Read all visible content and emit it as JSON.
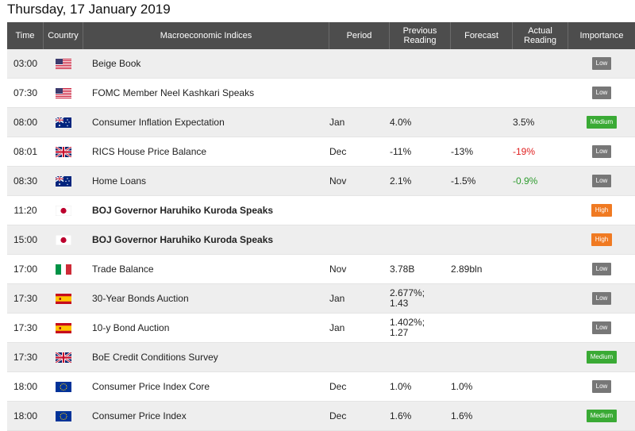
{
  "page": {
    "title": "Thursday, 17 January 2019"
  },
  "headers": {
    "time": "Time",
    "country": "Country",
    "index": "Macroeconomic Indices",
    "period": "Period",
    "previous": "Previous Reading",
    "forecast": "Forecast",
    "actual": "Actual Reading",
    "importance": "Importance"
  },
  "colors": {
    "low": "#777777",
    "medium": "#3aaa35",
    "high": "#f07a22",
    "header": "#4d4d4d"
  },
  "rows": [
    {
      "time": "03:00",
      "flag": "us-flag-icon",
      "name": "Beige Book",
      "bold": false,
      "period": "",
      "previous": "",
      "forecast": "",
      "actual": "",
      "actual_tone": "",
      "importance": "Low"
    },
    {
      "time": "07:30",
      "flag": "us-flag-icon",
      "name": "FOMC Member Neel Kashkari Speaks",
      "bold": false,
      "period": "",
      "previous": "",
      "forecast": "",
      "actual": "",
      "actual_tone": "",
      "importance": "Low"
    },
    {
      "time": "08:00",
      "flag": "au-flag-icon",
      "name": "Consumer Inflation Expectation",
      "bold": false,
      "period": "Jan",
      "previous": "4.0%",
      "forecast": "",
      "actual": "3.5%",
      "actual_tone": "",
      "importance": "Medium"
    },
    {
      "time": "08:01",
      "flag": "uk-flag-icon",
      "name": "RICS House Price Balance",
      "bold": false,
      "period": "Dec",
      "previous": "-11%",
      "forecast": "-13%",
      "actual": "-19%",
      "actual_tone": "neg",
      "importance": "Low"
    },
    {
      "time": "08:30",
      "flag": "au-flag-icon",
      "name": "Home Loans",
      "bold": false,
      "period": "Nov",
      "previous": "2.1%",
      "forecast": "-1.5%",
      "actual": "-0.9%",
      "actual_tone": "pos",
      "importance": "Low"
    },
    {
      "time": "11:20",
      "flag": "jp-flag-icon",
      "name": "BOJ Governor Haruhiko Kuroda Speaks",
      "bold": true,
      "period": "",
      "previous": "",
      "forecast": "",
      "actual": "",
      "actual_tone": "",
      "importance": "High"
    },
    {
      "time": "15:00",
      "flag": "jp-flag-icon",
      "name": "BOJ Governor Haruhiko Kuroda Speaks",
      "bold": true,
      "period": "",
      "previous": "",
      "forecast": "",
      "actual": "",
      "actual_tone": "",
      "importance": "High"
    },
    {
      "time": "17:00",
      "flag": "it-flag-icon",
      "name": "Trade Balance",
      "bold": false,
      "period": "Nov",
      "previous": "3.78B",
      "forecast": "2.89bln",
      "actual": "",
      "actual_tone": "",
      "importance": "Low"
    },
    {
      "time": "17:30",
      "flag": "es-flag-icon",
      "name": "30-Year Bonds Auction",
      "bold": false,
      "period": "Jan",
      "previous": "2.677%;\n1.43",
      "forecast": "",
      "actual": "",
      "actual_tone": "",
      "importance": "Low"
    },
    {
      "time": "17:30",
      "flag": "es-flag-icon",
      "name": "10-y Bond Auction",
      "bold": false,
      "period": "Jan",
      "previous": "1.402%;\n1.27",
      "forecast": "",
      "actual": "",
      "actual_tone": "",
      "importance": "Low"
    },
    {
      "time": "17:30",
      "flag": "uk-flag-icon",
      "name": "BoE Credit Conditions Survey",
      "bold": false,
      "period": "",
      "previous": "",
      "forecast": "",
      "actual": "",
      "actual_tone": "",
      "importance": "Medium"
    },
    {
      "time": "18:00",
      "flag": "eu-flag-icon",
      "name": "Consumer Price Index Core",
      "bold": false,
      "period": "Dec",
      "previous": "1.0%",
      "forecast": "1.0%",
      "actual": "",
      "actual_tone": "",
      "importance": "Low"
    },
    {
      "time": "18:00",
      "flag": "eu-flag-icon",
      "name": "Consumer Price Index",
      "bold": false,
      "period": "Dec",
      "previous": "1.6%",
      "forecast": "1.6%",
      "actual": "",
      "actual_tone": "",
      "importance": "Medium"
    }
  ]
}
